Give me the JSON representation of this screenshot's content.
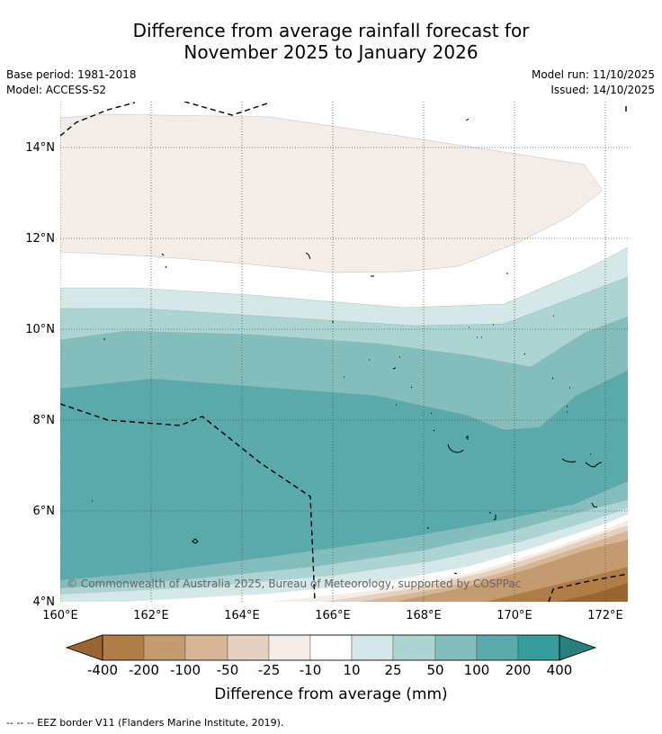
{
  "title": {
    "line1": "Difference from average rainfall forecast for",
    "line2": "November 2025 to January 2026"
  },
  "meta": {
    "base_period": "Base period: 1981-2018",
    "model": "Model: ACCESS-S2",
    "model_run": "Model run: 11/10/2025",
    "issued": "Issued: 14/10/2025"
  },
  "map": {
    "lon_range": [
      160,
      172.5
    ],
    "lat_range": [
      4,
      15
    ],
    "lon_ticks": [
      "160°E",
      "162°E",
      "164°E",
      "166°E",
      "168°E",
      "170°E",
      "172°E"
    ],
    "lat_ticks": [
      "4°N",
      "6°N",
      "8°N",
      "10°N",
      "12°N",
      "14°N"
    ],
    "copyright": "© Commonwealth of Australia 2025, Bureau of Meteorology, supported by COSPPac"
  },
  "colorbar": {
    "labels": [
      "-400",
      "-200",
      "-100",
      "-50",
      "-25",
      "-10",
      "10",
      "25",
      "50",
      "100",
      "200",
      "400"
    ],
    "colors": [
      "#9b6531",
      "#b07d48",
      "#c49a70",
      "#d7b597",
      "#e6d1c0",
      "#f4ede7",
      "#ffffff",
      "#d4e8e7",
      "#abd4d3",
      "#83bebd",
      "#5aa9ab",
      "#379c9c",
      "#287f80"
    ],
    "title": "Difference from average (mm)"
  },
  "footnote": "--  --  -- EEZ border V11 (Flanders Marine Institute, 2019)."
}
